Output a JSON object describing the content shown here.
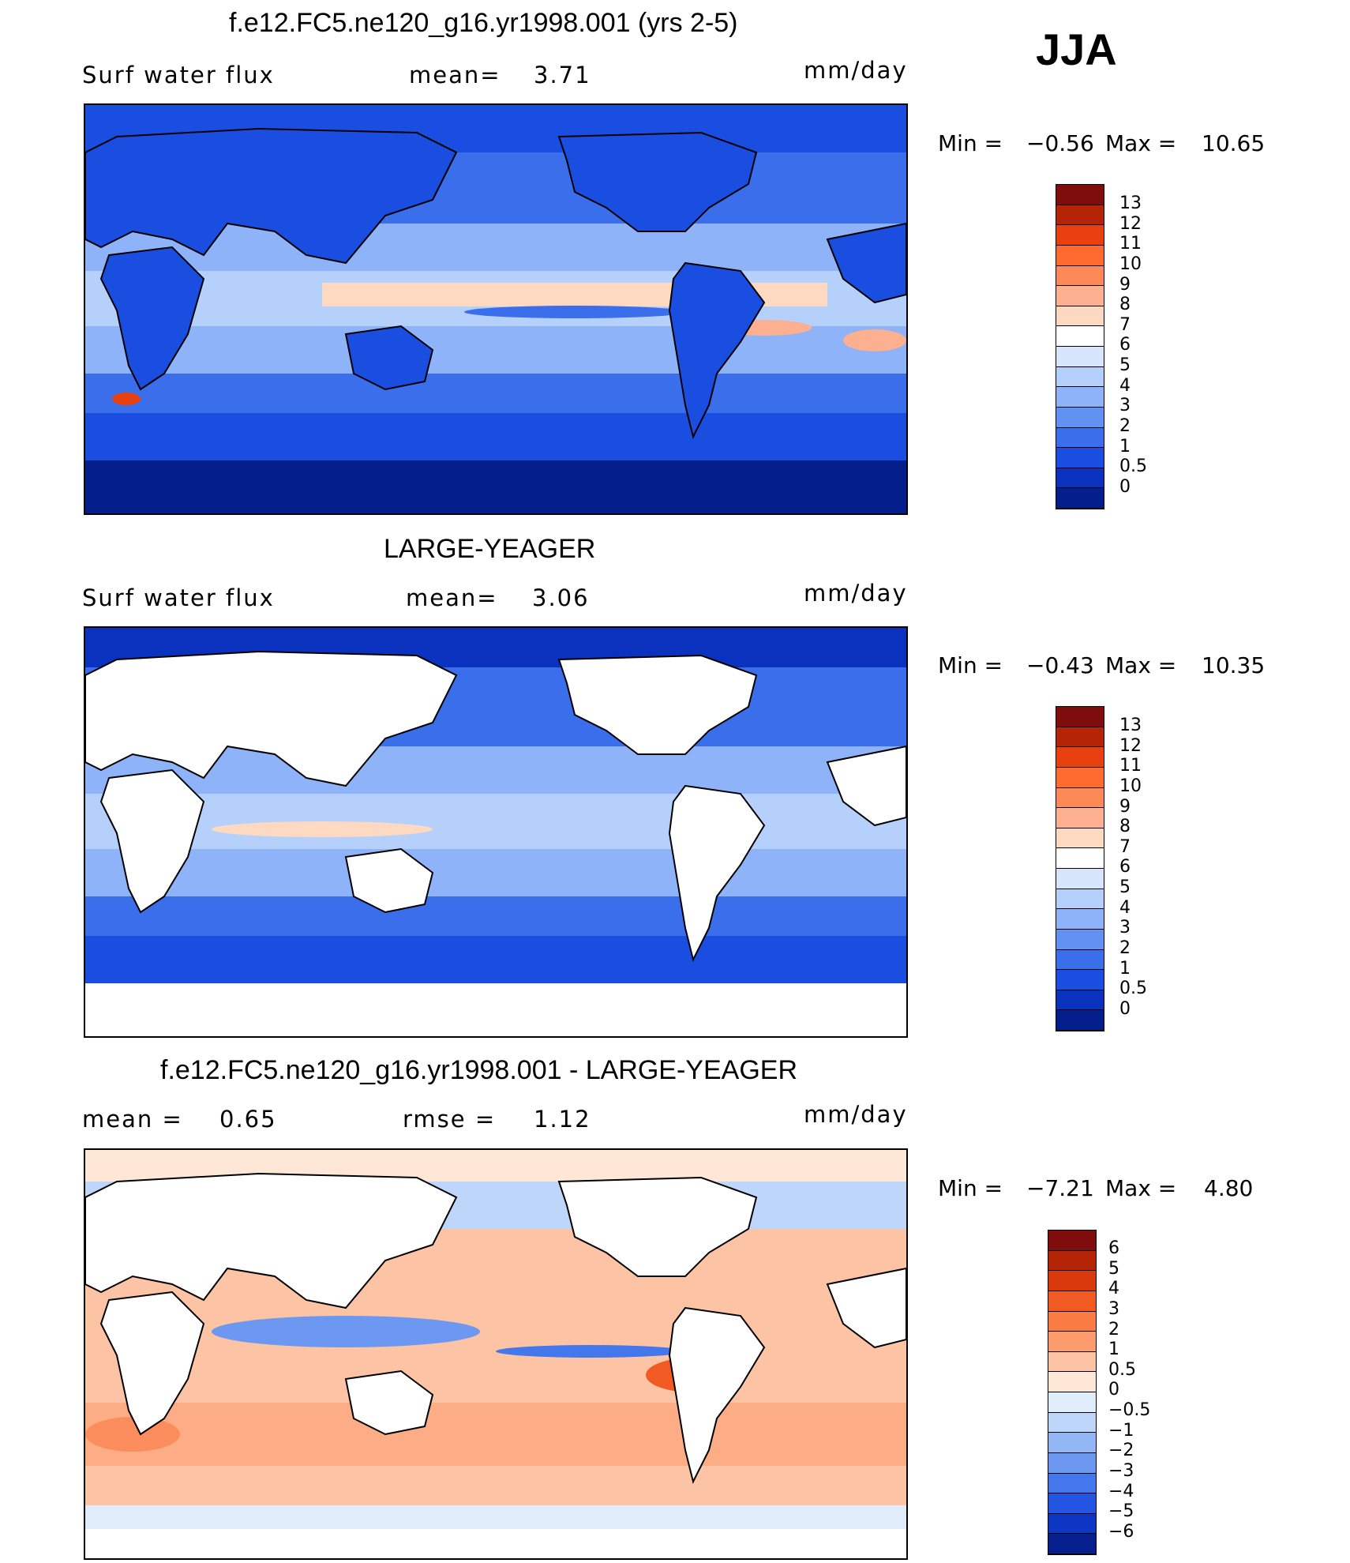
{
  "season": "JJA",
  "panels": [
    {
      "title": "f.e12.FC5.ne120_g16.yr1998.001 (yrs 2-5)",
      "var_label": "Surf water flux",
      "stat1_label": "mean=",
      "stat1_value": "3.71",
      "stat2_label": "",
      "stat2_value": "",
      "units": "mm/day",
      "min_label": "Min =",
      "min_value": "−0.56",
      "max_label": "Max =",
      "max_value": "10.65",
      "colorbar_ticks": [
        "13",
        "12",
        "11",
        "10",
        "9",
        "8",
        "7",
        "6",
        "5",
        "4",
        "3",
        "2",
        "1",
        "0.5",
        "0"
      ],
      "colors": [
        "#7f0d0d",
        "#b52407",
        "#e8400f",
        "#ff6a2f",
        "#fc8a58",
        "#fcb08f",
        "#fed9c2",
        "#ffffff",
        "#d6e5fb",
        "#b5d1fb",
        "#8fb3f8",
        "#6192f3",
        "#3a6eea",
        "#1a4ee0",
        "#0a32bf",
        "#041e8c"
      ]
    },
    {
      "title": "LARGE-YEAGER",
      "var_label": "Surf water flux",
      "stat1_label": "mean=",
      "stat1_value": "3.06",
      "stat2_label": "",
      "stat2_value": "",
      "units": "mm/day",
      "min_label": "Min =",
      "min_value": "−0.43",
      "max_label": "Max =",
      "max_value": "10.35",
      "colorbar_ticks": [
        "13",
        "12",
        "11",
        "10",
        "9",
        "8",
        "7",
        "6",
        "5",
        "4",
        "3",
        "2",
        "1",
        "0.5",
        "0"
      ],
      "colors": [
        "#7f0d0d",
        "#b52407",
        "#e8400f",
        "#ff6a2f",
        "#fc8a58",
        "#fcb08f",
        "#fed9c2",
        "#ffffff",
        "#d6e5fb",
        "#b5d1fb",
        "#8fb3f8",
        "#6192f3",
        "#3a6eea",
        "#1a4ee0",
        "#0a32bf",
        "#041e8c"
      ]
    },
    {
      "title": "f.e12.FC5.ne120_g16.yr1998.001 - LARGE-YEAGER",
      "var_label": "",
      "stat1_label": "mean =",
      "stat1_value": "0.65",
      "stat2_label": "rmse =",
      "stat2_value": "1.12",
      "units": "mm/day",
      "min_label": "Min =",
      "min_value": "−7.21",
      "max_label": "Max =",
      "max_value": "4.80",
      "colorbar_ticks": [
        "6",
        "5",
        "4",
        "3",
        "2",
        "1",
        "0.5",
        "0",
        "−0.5",
        "−1",
        "−2",
        "−3",
        "−4",
        "−5",
        "−6"
      ],
      "colors": [
        "#7f0d0d",
        "#b52407",
        "#d9390c",
        "#f25a23",
        "#fb7b45",
        "#fc9b6e",
        "#fdc3a5",
        "#fee7d7",
        "#e1ecfb",
        "#bfd6fb",
        "#93b6f7",
        "#6c98f2",
        "#4577ec",
        "#2454e2",
        "#0e36c4",
        "#051f8e"
      ]
    }
  ]
}
